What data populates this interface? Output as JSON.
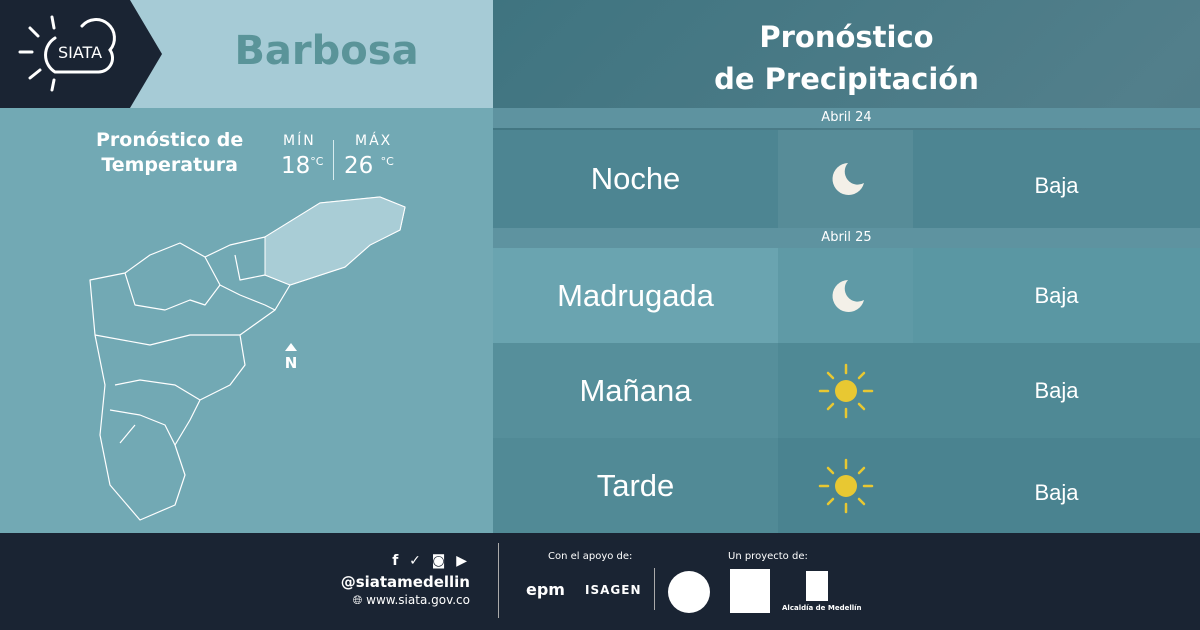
{
  "header": {
    "logo_text": "SIATA",
    "city": "Barbosa",
    "title_line1": "Pronóstico",
    "title_line2": "de Precipitación"
  },
  "temperature": {
    "title_line1": "Pronóstico de",
    "title_line2": "Temperatura",
    "min_label": "MÍN",
    "min_value": "18",
    "max_label": "MÁX",
    "max_value": "26",
    "unit": "°C"
  },
  "map": {
    "north_label": "N"
  },
  "forecast": [
    {
      "date": "Abril 24",
      "periods": [
        {
          "label": "Noche",
          "icon": "moon-icon",
          "value": "Baja"
        }
      ]
    },
    {
      "date": "Abril 25",
      "periods": [
        {
          "label": "Madrugada",
          "icon": "moon-icon",
          "value": "Baja"
        },
        {
          "label": "Mañana",
          "icon": "sun-icon",
          "value": "Baja"
        },
        {
          "label": "Tarde",
          "icon": "sun-icon",
          "value": "Baja"
        }
      ]
    }
  ],
  "footer": {
    "social_icons": [
      "facebook-icon",
      "twitter-icon",
      "instagram-icon",
      "youtube-icon"
    ],
    "handle": "@siatamedellin",
    "website": "www.siata.gov.co",
    "support_label": "Con el apoyo de:",
    "support_logos": [
      "epm",
      "ISAGEN"
    ],
    "project_label": "Un proyecto de:",
    "project_logo_text": "Alcaldía de Medellín"
  },
  "colors": {
    "navy": "#1a2433",
    "light_blue": "#a6cbd6",
    "teal": "#72a9b4",
    "sun": "#e8c832"
  }
}
